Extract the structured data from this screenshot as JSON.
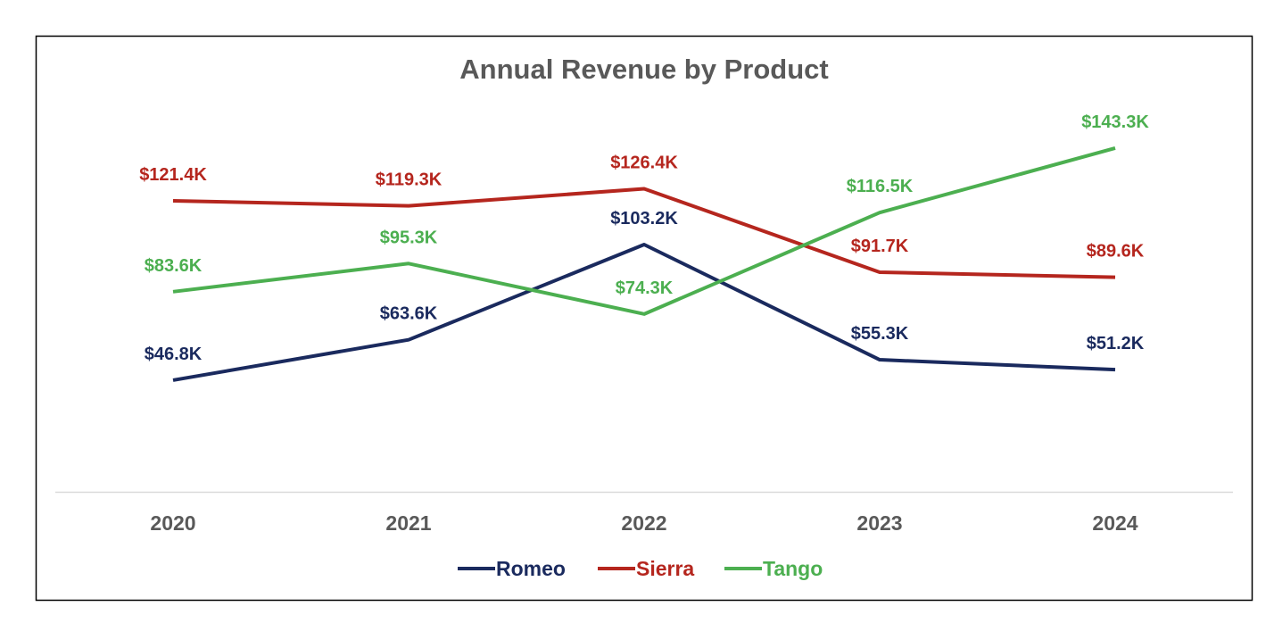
{
  "chart_data": {
    "type": "line",
    "title": "Annual Revenue by Product",
    "categories": [
      "2020",
      "2021",
      "2022",
      "2023",
      "2024"
    ],
    "series": [
      {
        "name": "Romeo",
        "color": "#1a2a5e",
        "values": [
          46.8,
          63.6,
          103.2,
          55.3,
          51.2
        ],
        "labels": [
          "$46.8K",
          "$63.6K",
          "$103.2K",
          "$55.3K",
          "$51.2K"
        ]
      },
      {
        "name": "Sierra",
        "color": "#b5261e",
        "values": [
          121.4,
          119.3,
          126.4,
          91.7,
          89.6
        ],
        "labels": [
          "$121.4K",
          "$119.3K",
          "$126.4K",
          "$91.7K",
          "$89.6K"
        ]
      },
      {
        "name": "Tango",
        "color": "#4caf50",
        "values": [
          83.6,
          95.3,
          74.3,
          116.5,
          143.3
        ],
        "labels": [
          "$83.6K",
          "$95.3K",
          "$74.3K",
          "$116.5K",
          "$143.3K"
        ]
      }
    ],
    "unit": "$K",
    "ylim": [
      0,
      160
    ],
    "grid": false,
    "legend": "bottom",
    "xlabel": "",
    "ylabel": ""
  }
}
